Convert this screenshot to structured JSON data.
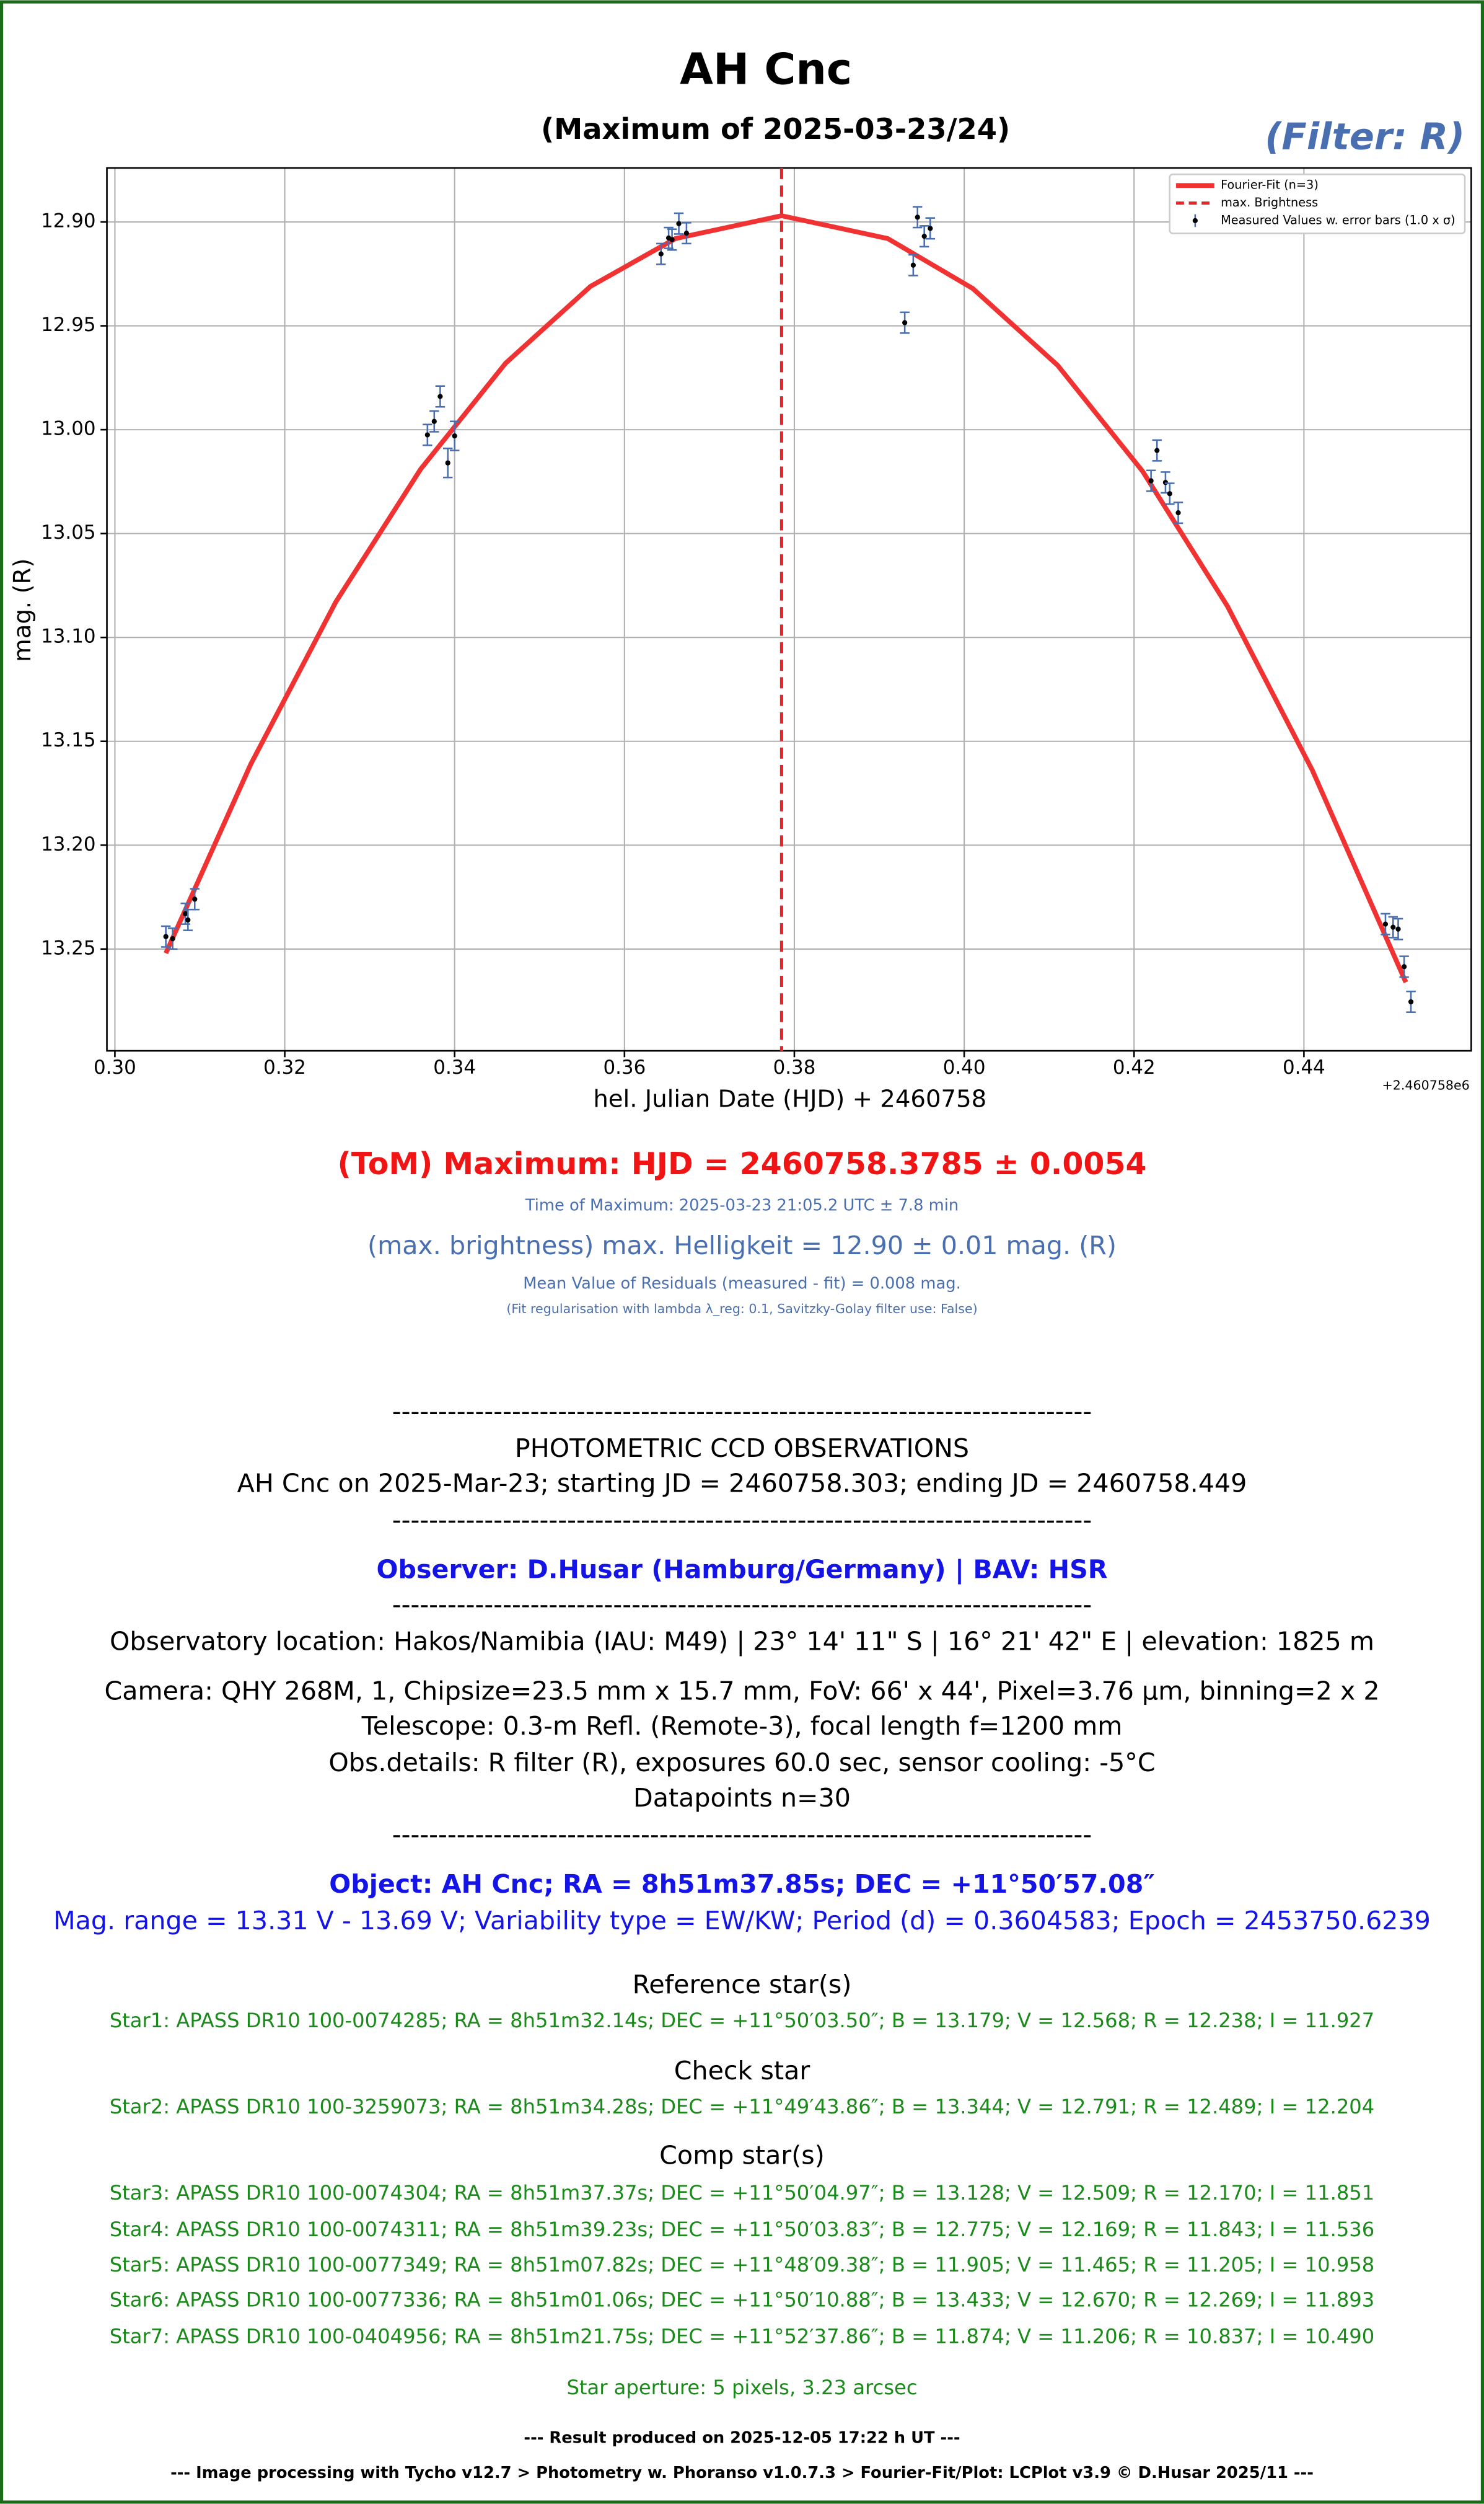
{
  "chart_data": {
    "type": "scatter",
    "title": "AH Cnc",
    "subtitle": "(Maximum of 2025-03-23/24)",
    "filter_note": "(Filter: R)",
    "x_label": "hel. Julian Date (HJD) + 2460758",
    "y_label": "mag. (R)",
    "x_offset_label": "+2.460758e6",
    "xlim": [
      0.29906,
      0.4597
    ],
    "ylim": [
      12.874,
      13.299
    ],
    "y_inverted": true,
    "grid": true,
    "legend": "upper right",
    "xticks": [
      {
        "value": 0.3,
        "label": "0.30"
      },
      0.32,
      0.34,
      0.36,
      0.38,
      {
        "value": 0.4,
        "label": "0.40"
      },
      0.42,
      0.44
    ],
    "yticks": [
      {
        "value": 12.9,
        "label": "12.90"
      },
      12.95,
      {
        "value": 13.0,
        "label": "13.00"
      },
      13.05,
      {
        "value": 13.1,
        "label": "13.10"
      },
      13.15,
      {
        "value": 13.2,
        "label": "13.20"
      },
      13.25
    ],
    "max_x": 0.3785,
    "max_name": "max. Brightness",
    "max_color": "#e8262a",
    "fit": {
      "name": "Fourier-Fit (n=3)",
      "color": "#f03232",
      "x": [
        0.306,
        0.316,
        0.326,
        0.336,
        0.346,
        0.356,
        0.366,
        0.3785,
        0.391,
        0.401,
        0.411,
        0.421,
        0.431,
        0.441,
        0.452
      ],
      "values": [
        13.252,
        13.161,
        13.083,
        13.019,
        12.968,
        12.931,
        12.908,
        12.897,
        12.908,
        12.932,
        12.969,
        13.02,
        13.085,
        13.164,
        13.266
      ]
    },
    "series": [
      {
        "name": "Measured Values w. error bars (1.0 x σ)",
        "color": "#000000",
        "error_color": "#4a6fb0",
        "x": [
          0.306,
          0.3068,
          0.3083,
          0.3086,
          0.3094,
          0.3368,
          0.3376,
          0.3383,
          0.3392,
          0.34,
          0.3643,
          0.3652,
          0.3656,
          0.3664,
          0.3673,
          0.393,
          0.394,
          0.3945,
          0.3953,
          0.396,
          0.422,
          0.4227,
          0.4237,
          0.4242,
          0.4252,
          0.4496,
          0.4505,
          0.4511,
          0.4518,
          0.4526
        ],
        "values": [
          13.244,
          13.245,
          13.233,
          13.236,
          13.226,
          13.0025,
          12.996,
          12.984,
          13.016,
          13.003,
          12.9154,
          12.9077,
          12.9085,
          12.9008,
          12.9054,
          12.9485,
          12.9208,
          12.8977,
          12.9069,
          12.9031,
          13.0246,
          13.01,
          13.0254,
          13.0308,
          13.04,
          13.238,
          13.2395,
          13.2404,
          13.2585,
          13.2754
        ],
        "errors": [
          0.005,
          0.005,
          0.005,
          0.005,
          0.005,
          0.005,
          0.005,
          0.005,
          0.007,
          0.007,
          0.005,
          0.005,
          0.005,
          0.005,
          0.005,
          0.005,
          0.005,
          0.005,
          0.005,
          0.005,
          0.005,
          0.005,
          0.005,
          0.005,
          0.005,
          0.005,
          0.005,
          0.005,
          0.005,
          0.005
        ]
      }
    ]
  },
  "report": {
    "lines": [
      "(ToM) Maximum: HJD = 2460758.3785 ± 0.0054",
      "Time of Maximum:   2025-03-23   21:05.2 UTC ± 7.8 min",
      "(max. brightness) max. Helligkeit = 12.90 ± 0.01 mag. (R)",
      "Mean Value of Residuals (measured - fit) = 0.008 mag.",
      "(Fit regularisation with lambda λ_reg: 0.1, Savitzky-Golay filter use: False)",
      "----------------------------------------------------------------------------",
      "PHOTOMETRIC CCD OBSERVATIONS",
      "AH Cnc on 2025-Mar-23; starting JD = 2460758.303; ending JD = 2460758.449",
      "----------------------------------------------------------------------------",
      "Observer: D.Husar (Hamburg/Germany) | BAV: HSR",
      "----------------------------------------------------------------------------",
      "Observatory location: Hakos/Namibia (IAU: M49) | 23° 14' 11\" S | 16° 21' 42\" E | elevation: 1825 m",
      "Camera: QHY 268M, 1, Chipsize=23.5 mm x 15.7 mm, FoV: 66' x 44', Pixel=3.76 µm, binning=2 x 2",
      "Telescope: 0.3-m Refl. (Remote-3), focal length f=1200 mm",
      "Obs.details: R filter (R), exposures 60.0 sec, sensor cooling: -5°C",
      "Datapoints n=30",
      "----------------------------------------------------------------------------",
      "Object: AH Cnc; RA = 8h51m37.85s; DEC = +11°50′57.08″",
      "Mag. range = 13.31 V - 13.69 V; Variability type = EW/KW; Period (d) = 0.3604583; Epoch = 2453750.6239",
      "Reference star(s)",
      "Star1: APASS DR10 100-0074285; RA = 8h51m32.14s; DEC = +11°50′03.50″; B = 13.179; V = 12.568; R = 12.238; I = 11.927",
      "Check star",
      "Star2: APASS DR10 100-3259073; RA = 8h51m34.28s; DEC = +11°49′43.86″; B = 13.344; V = 12.791; R = 12.489; I = 12.204",
      "Comp star(s)",
      "Star3: APASS DR10 100-0074304; RA = 8h51m37.37s; DEC = +11°50′04.97″; B = 13.128; V = 12.509; R = 12.170; I = 11.851",
      "Star4: APASS DR10 100-0074311; RA = 8h51m39.23s; DEC = +11°50′03.83″; B = 12.775; V = 12.169; R = 11.843; I = 11.536",
      "Star5: APASS DR10 100-0077349; RA = 8h51m07.82s; DEC = +11°48′09.38″; B = 11.905; V = 11.465; R = 11.205; I = 10.958",
      "Star6: APASS DR10 100-0077336; RA = 8h51m01.06s; DEC = +11°50′10.88″; B = 13.433; V = 12.670; R = 12.269; I = 11.893",
      "Star7: APASS DR10 100-0404956; RA = 8h51m21.75s; DEC = +11°52′37.86″; B = 11.874; V = 11.206; R = 10.837; I = 10.490",
      "Star aperture: 5 pixels, 3.23 arcsec",
      "--- Result produced on 2025-12-05 17:22 h UT ---",
      "--- Image processing with Tycho v12.7 > Photometry w. Phoranso v1.0.7.3 > Fourier-Fit/Plot: LCPlot v3.9 © D.Husar 2025/11 ---"
    ]
  }
}
